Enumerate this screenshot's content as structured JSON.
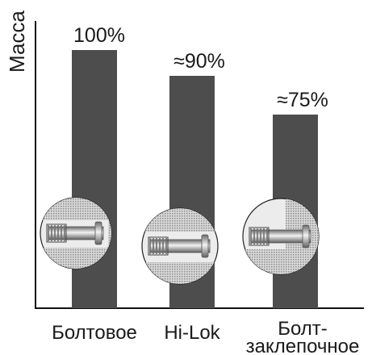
{
  "chart_data": {
    "type": "bar",
    "ylabel": "Масса",
    "xlabel": "",
    "categories": [
      "Болтовое",
      "Hi-Lok",
      "Болт-заклепочное"
    ],
    "category_lines": [
      [
        "Болтовое"
      ],
      [
        "Hi-Lok"
      ],
      [
        "Болт-",
        "заклепочное"
      ]
    ],
    "values": [
      100,
      90,
      75
    ],
    "data_labels": [
      "100%",
      "≈90%",
      "≈75%"
    ],
    "ylim": [
      0,
      100
    ],
    "grid": false,
    "legend": "none",
    "colors": {
      "bar": "#4d4d4d",
      "axis": "#111111",
      "insert_fill": "#ececec",
      "hatch": "#9a9a9a",
      "metal_dark": "#6f6f6f",
      "metal_light": "#e8e8e8"
    },
    "inset_icons": [
      "bolt-joint-icon",
      "hi-lok-fastener-icon",
      "bolt-rivet-icon"
    ]
  }
}
